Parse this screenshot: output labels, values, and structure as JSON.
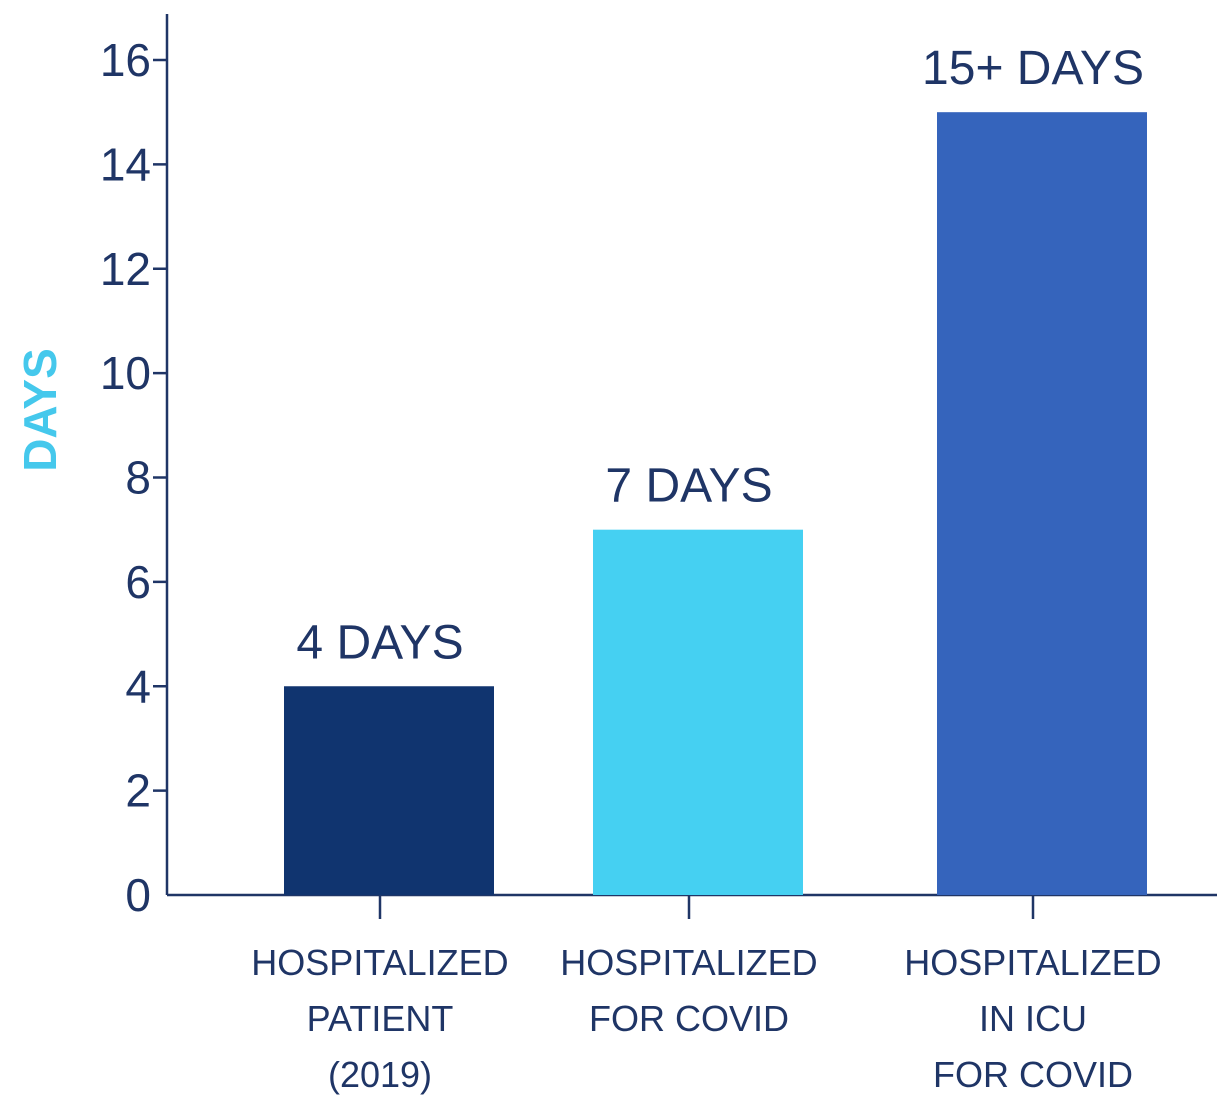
{
  "chart_data": {
    "type": "bar",
    "categories": [
      [
        "HOSPITALIZED",
        "PATIENT",
        "(2019)"
      ],
      [
        "HOSPITALIZED",
        "FOR COVID"
      ],
      [
        "HOSPITALIZED",
        "IN ICU",
        "FOR COVID"
      ]
    ],
    "values": [
      4,
      7,
      15
    ],
    "data_labels": [
      "4 DAYS",
      "7 DAYS",
      "15+ DAYS"
    ],
    "bar_colors": [
      "#10346f",
      "#45d0f2",
      "#3564bc"
    ],
    "title": "",
    "xlabel": "",
    "ylabel": "DAYS",
    "ylabel_color": "#45c8ec",
    "axis_color": "#1f3566",
    "text_color": "#1f3566",
    "ylim": [
      0,
      16
    ],
    "yticks": [
      0,
      2,
      4,
      6,
      8,
      10,
      12,
      14,
      16
    ],
    "grid": false,
    "legend": "none"
  }
}
